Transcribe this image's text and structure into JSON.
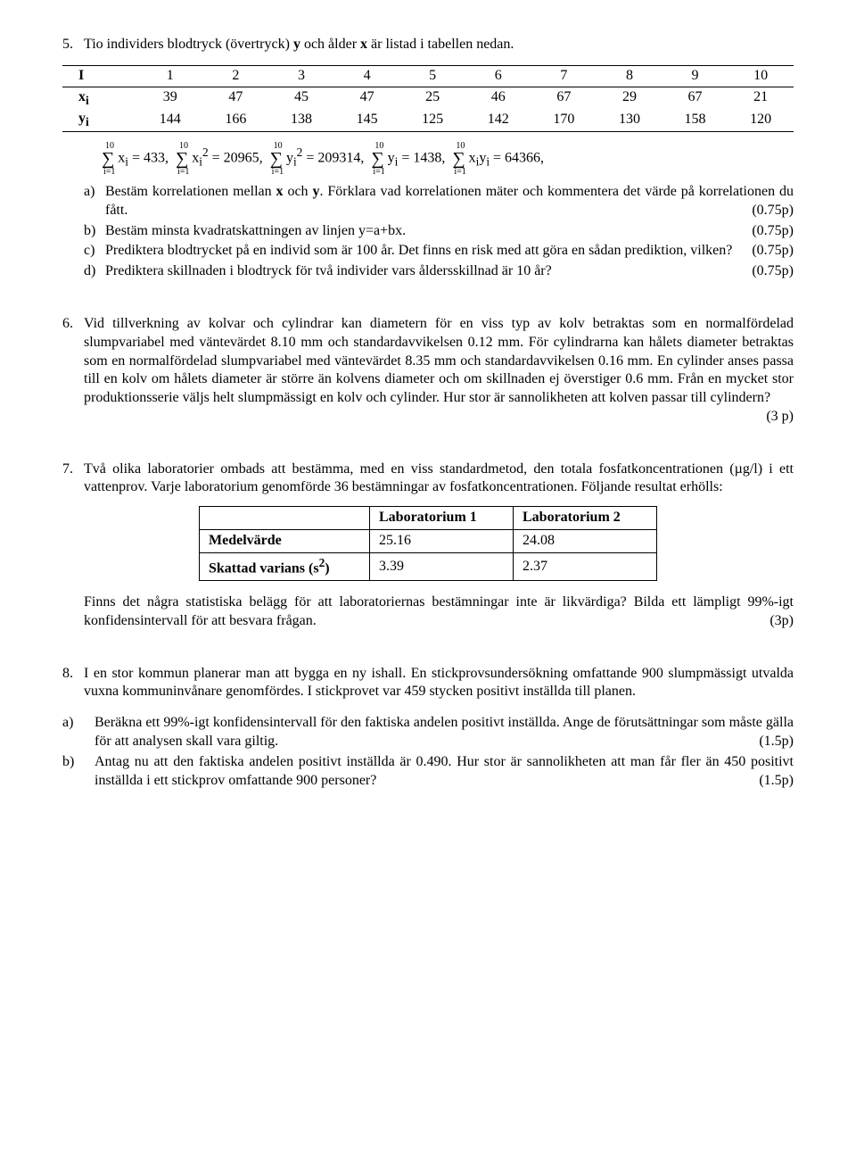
{
  "p5": {
    "number": "5.",
    "intro": "Tio individers blodtryck (övertryck) <b>y</b> och ålder <b>x</b> är listad i tabellen nedan.",
    "table": {
      "head_label": "I",
      "cols": [
        "1",
        "2",
        "3",
        "4",
        "5",
        "6",
        "7",
        "8",
        "9",
        "10"
      ],
      "rows": [
        {
          "label": "x<sub>i</sub>",
          "cells": [
            "39",
            "47",
            "45",
            "47",
            "25",
            "46",
            "67",
            "29",
            "67",
            "21"
          ]
        },
        {
          "label": "y<sub>i</sub>",
          "cells": [
            "144",
            "166",
            "138",
            "145",
            "125",
            "142",
            "170",
            "130",
            "158",
            "120"
          ]
        }
      ]
    },
    "sums": {
      "sx": "433",
      "sx2": "20965",
      "sy2": "209314",
      "sy": "1438",
      "sxy": "64366"
    },
    "a_lbl": "a)",
    "a_txt": "Bestäm korrelationen mellan <b>x</b> och <b>y</b>. Förklara vad korrelationen mäter och kommentera det värde på korrelationen du fått.",
    "a_pts": "(0.75p)",
    "b_lbl": "b)",
    "b_txt": "Bestäm minsta kvadratskattningen av linjen y=a+bx.",
    "b_pts": "(0.75p)",
    "c_lbl": "c)",
    "c_txt": "Prediktera blodtrycket på en individ som är 100 år. Det finns en risk med att göra en sådan prediktion, vilken?",
    "c_pts": "(0.75p)",
    "d_lbl": "d)",
    "d_txt": "Prediktera skillnaden i blodtryck för två individer vars åldersskillnad är 10 år?",
    "d_pts": "(0.75p)"
  },
  "p6": {
    "number": "6.",
    "text": "Vid tillverkning av kolvar och cylindrar kan diametern för en viss typ av kolv betraktas som en normalfördelad slumpvariabel med väntevärdet 8.10 mm och standardavvikelsen 0.12 mm. För cylindrarna kan hålets diameter betraktas som en normalfördelad slumpvariabel med väntevärdet 8.35 mm och standardavvikelsen 0.16 mm. En cylinder anses passa till en kolv om hålets diameter är större än kolvens diameter och om skillnaden ej överstiger 0.6 mm. Från en mycket stor produktionsserie väljs helt slumpmässigt en kolv och cylinder. Hur stor är sannolikheten att kolven passar till cylindern?",
    "pts": "(3 p)"
  },
  "p7": {
    "number": "7.",
    "intro": "Två olika laboratorier ombads att bestämma, med en viss standardmetod, den totala fosfatkoncentrationen (µg/l) i ett vattenprov. Varje laboratorium genomförde 36 bestämningar av fosfatkoncentrationen. Följande resultat erhölls:",
    "table": {
      "h1": "Laboratorium 1",
      "h2": "Laboratorium 2",
      "r1_label": "Medelvärde",
      "r1_c1": "25.16",
      "r1_c2": "24.08",
      "r2_label": "Skattad varians (s<sup>2</sup>)",
      "r2_c1": "3.39",
      "r2_c2": "2.37"
    },
    "outro": "Finns det några statistiska belägg för att laboratoriernas bestämningar inte är likvärdiga? Bilda ett lämpligt 99%-igt konfidensintervall för att besvara frågan.",
    "pts": "(3p)"
  },
  "p8": {
    "number": "8.",
    "intro": "I en stor kommun planerar man att bygga en ny ishall. En stickprovsundersökning omfattande 900 slumpmässigt utvalda vuxna kommuninvånare genomfördes. I stickprovet var 459 stycken positivt inställda till planen.",
    "a_lbl": "a)",
    "a_txt": "Beräkna ett 99%-igt konfidensintervall för den faktiska andelen positivt inställda. Ange de förutsättningar som måste gälla för att analysen skall vara giltig.",
    "a_pts": "(1.5p)",
    "b_lbl": "b)",
    "b_txt": "Antag nu att den faktiska andelen positivt inställda är 0.490. Hur stor är sannolikheten att man får fler än 450 positivt inställda i ett stickprov omfattande 900 personer?",
    "b_pts": "(1.5p)"
  }
}
